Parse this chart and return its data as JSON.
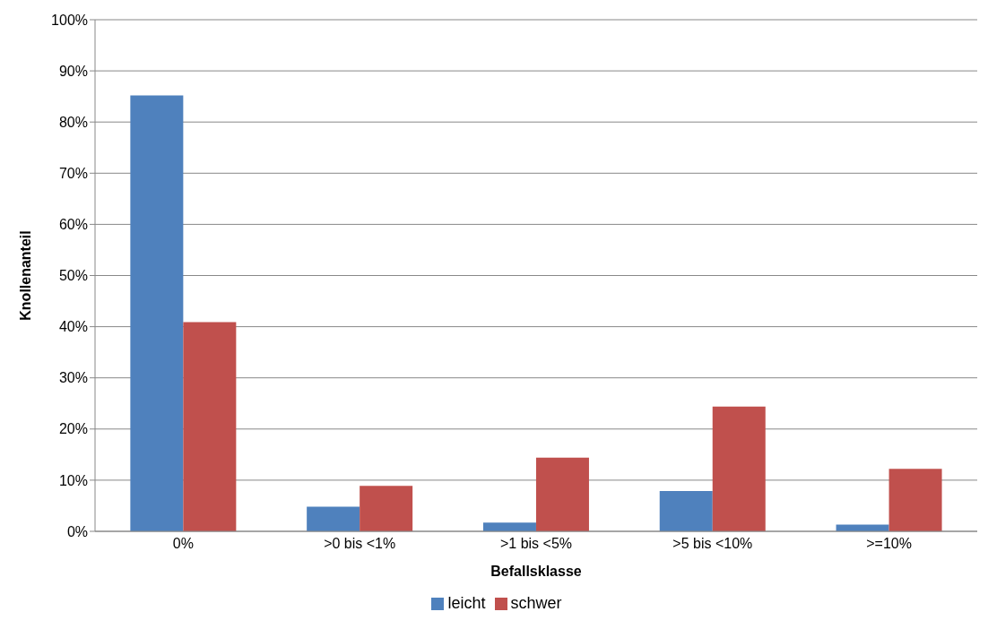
{
  "chart_data": {
    "type": "bar",
    "xlabel": "Befallsklasse",
    "ylabel": "Knollenanteil",
    "categories": [
      "0%",
      ">0 bis <1%",
      ">1 bis <5%",
      ">5 bis <10%",
      ">=10%"
    ],
    "series": [
      {
        "name": "leicht",
        "color": "#4f81bd",
        "values": [
          85.2,
          4.8,
          1.7,
          7.9,
          1.3
        ]
      },
      {
        "name": "schwer",
        "color": "#c0504d",
        "values": [
          40.9,
          8.9,
          14.4,
          24.4,
          12.2
        ]
      }
    ],
    "ylim": [
      0,
      100
    ],
    "yticks": [
      {
        "value": 0,
        "label": "0%"
      },
      {
        "value": 10,
        "label": "10%"
      },
      {
        "value": 20,
        "label": "20%"
      },
      {
        "value": 30,
        "label": "30%"
      },
      {
        "value": 40,
        "label": "40%"
      },
      {
        "value": 50,
        "label": "50%"
      },
      {
        "value": 60,
        "label": "60%"
      },
      {
        "value": 70,
        "label": "70%"
      },
      {
        "value": 80,
        "label": "80%"
      },
      {
        "value": 90,
        "label": "90%"
      },
      {
        "value": 100,
        "label": "100%"
      }
    ],
    "grid": "y",
    "legend": "bottom"
  }
}
